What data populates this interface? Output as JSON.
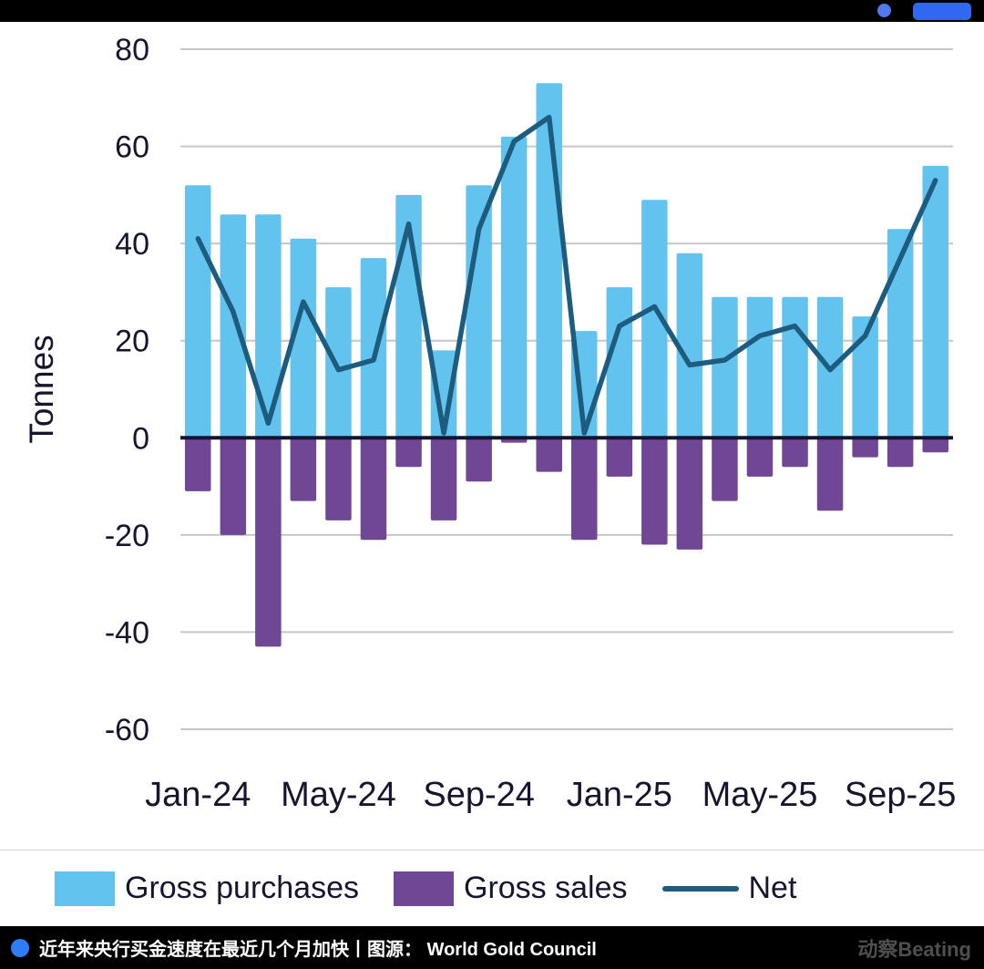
{
  "topbar": {
    "accent_color": "#3168F1",
    "circle_color": "#5577EE"
  },
  "chart_data": {
    "type": "bar",
    "title": "",
    "xlabel": "",
    "ylabel": "Tonnes",
    "ylim": [
      -60,
      80
    ],
    "yticks": [
      80,
      60,
      40,
      20,
      0,
      -20,
      -40,
      -60
    ],
    "grid": "horizontal",
    "legend_position": "bottom",
    "categories": [
      "Jan-24",
      "Feb-24",
      "Mar-24",
      "Apr-24",
      "May-24",
      "Jun-24",
      "Jul-24",
      "Aug-24",
      "Sep-24",
      "Oct-24",
      "Nov-24",
      "Dec-24",
      "Jan-25",
      "Feb-25",
      "Mar-25",
      "Apr-25",
      "May-25",
      "Jun-25",
      "Jul-25",
      "Aug-25",
      "Sep-25",
      "Oct-25"
    ],
    "xtick_labels": [
      "Jan-24",
      "May-24",
      "Sep-24",
      "Jan-25",
      "May-25",
      "Sep-25"
    ],
    "xtick_positions": [
      0,
      4,
      8,
      12,
      16,
      20
    ],
    "series": [
      {
        "name": "Gross purchases",
        "type": "bar",
        "color": "#63C3EF",
        "values": [
          52,
          46,
          46,
          41,
          31,
          37,
          50,
          18,
          52,
          62,
          73,
          22,
          31,
          49,
          38,
          29,
          29,
          29,
          29,
          25,
          43,
          56
        ]
      },
      {
        "name": "Gross sales",
        "type": "bar",
        "color": "#6F4795",
        "values": [
          -11,
          -20,
          -43,
          -13,
          -17,
          -21,
          -6,
          -17,
          -9,
          -1,
          -7,
          -21,
          -8,
          -22,
          -23,
          -13,
          -8,
          -6,
          -15,
          -4,
          -6,
          -3
        ]
      },
      {
        "name": "Net",
        "type": "line",
        "color": "#1D5C7E",
        "values": [
          41,
          26,
          3,
          28,
          14,
          16,
          44,
          1,
          43,
          61,
          66,
          1,
          23,
          27,
          15,
          16,
          21,
          23,
          14,
          21,
          37,
          53
        ]
      }
    ]
  },
  "legend": {
    "items": [
      {
        "label": "Gross purchases",
        "color": "#63C3EF",
        "kind": "swatch"
      },
      {
        "label": "Gross sales",
        "color": "#6F4795",
        "kind": "swatch"
      },
      {
        "label": "Net",
        "color": "#1D5C7E",
        "kind": "line"
      }
    ]
  },
  "caption": {
    "text": "近年来央行买金速度在最近几个月加快丨图源： World Gold Council",
    "watermark": "动察Beating",
    "dot_color": "#2E7CF6"
  }
}
